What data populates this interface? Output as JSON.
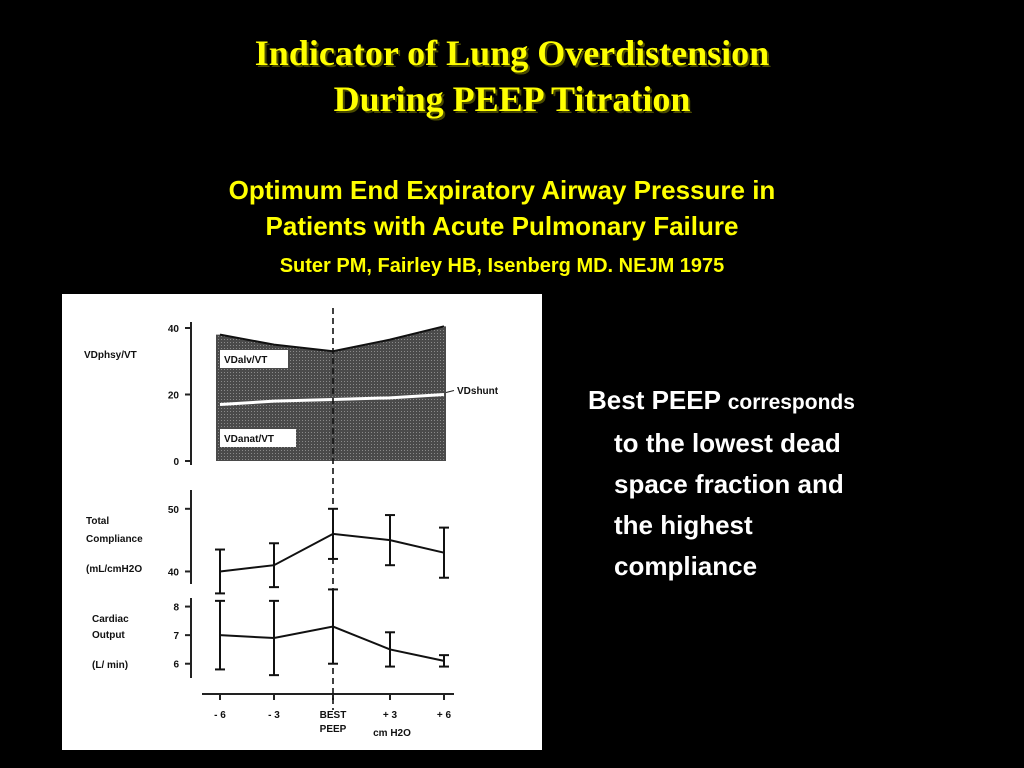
{
  "slide": {
    "title_line1": "Indicator of  Lung Overdistension",
    "title_line2": "During PEEP Titration",
    "subtitle_line1": "Optimum End Expiratory Airway Pressure in",
    "subtitle_line2": "Patients with Acute Pulmonary Failure",
    "citation": "Suter PM, Fairley HB, Isenberg MD.  NEJM 1975",
    "body": {
      "lead": "Best PEEP",
      "lead_small": "corresponds",
      "lines": [
        "to the lowest dead",
        "space fraction and",
        "the highest",
        "compliance"
      ]
    }
  },
  "colors": {
    "title": "#ffff00",
    "body": "#ffffff",
    "background": "#000000"
  },
  "chart_data": [
    {
      "type": "area",
      "ylabel": "VDphsy/VT",
      "ylim": [
        0,
        40
      ],
      "y_ticks": [
        "40",
        "20",
        "0"
      ],
      "x": [
        "- 6",
        "- 3",
        "BEST PEEP",
        "+ 3",
        "+ 6"
      ],
      "series": [
        {
          "name": "VDanat/VT",
          "values": [
            17,
            18,
            18.5,
            19,
            20
          ]
        },
        {
          "name": "VDshunt",
          "values": [
            17,
            18,
            18.5,
            19,
            20
          ]
        },
        {
          "name": "VDalv/VT",
          "values": [
            38,
            35,
            33,
            36.5,
            40.5
          ]
        }
      ]
    },
    {
      "type": "line",
      "ylabel_lines": [
        "Total",
        "Compliance",
        "(mL/cmH2O"
      ],
      "ylim": [
        38,
        53
      ],
      "y_ticks": [
        "50",
        "40"
      ],
      "x": [
        "- 6",
        "- 3",
        "BEST PEEP",
        "+ 3",
        "+ 6"
      ],
      "values": [
        40,
        41,
        46,
        45,
        43
      ],
      "error": [
        3.5,
        3.5,
        4,
        4,
        4
      ]
    },
    {
      "type": "line",
      "ylabel_lines": [
        "Cardiac",
        "Output",
        "(L/ min)"
      ],
      "ylim": [
        5.5,
        8.3
      ],
      "y_ticks": [
        "8",
        "7",
        "6"
      ],
      "x": [
        "- 6",
        "- 3",
        "BEST PEEP",
        "+ 3",
        "+ 6"
      ],
      "values": [
        7,
        6.9,
        7.3,
        6.5,
        6.1
      ],
      "error": [
        1.2,
        1.3,
        1.3,
        0.6,
        0.2
      ]
    }
  ],
  "x_axis": {
    "ticks": [
      "- 6",
      "- 3",
      "BEST",
      "+ 3",
      "+ 6"
    ],
    "tick_sub": "PEEP",
    "unit": "cm H2O"
  }
}
